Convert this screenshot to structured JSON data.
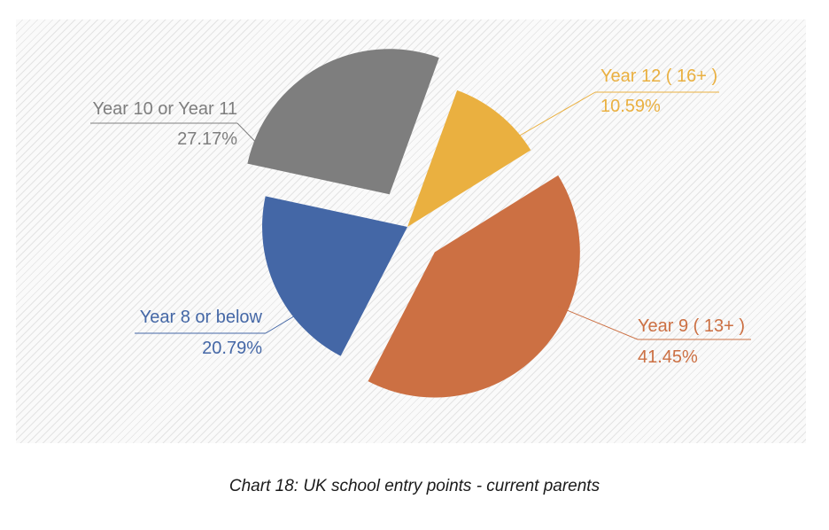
{
  "caption": "Chart 18: UK school entry points - current parents",
  "chart_data": {
    "type": "pie",
    "title": "Chart 18: UK school entry points - current parents",
    "legend": "none",
    "slices": [
      {
        "label": "Year 12 ( 16+ )",
        "value": 10.59,
        "value_label": "10.59%",
        "color": "#EAB040",
        "exploded": false
      },
      {
        "label": "Year 9 ( 13+ )",
        "value": 41.45,
        "value_label": "41.45%",
        "color": "#CC7043",
        "exploded": true
      },
      {
        "label": "Year 8 or below",
        "value": 20.79,
        "value_label": "20.79%",
        "color": "#4467A6",
        "exploded": false
      },
      {
        "label": "Year 10 or Year 11",
        "value": 27.17,
        "value_label": "27.17%",
        "color": "#7E7E7E",
        "exploded": true
      }
    ]
  }
}
